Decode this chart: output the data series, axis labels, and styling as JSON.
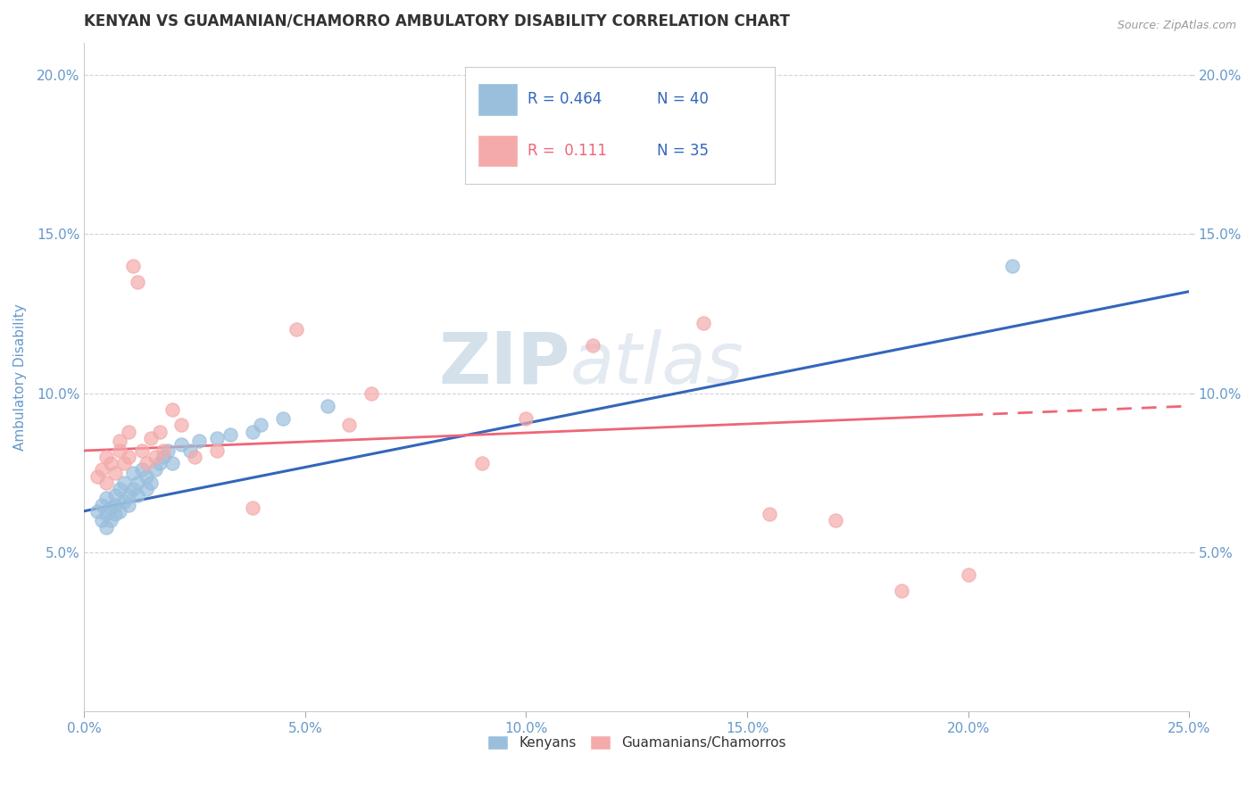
{
  "title": "KENYAN VS GUAMANIAN/CHAMORRO AMBULATORY DISABILITY CORRELATION CHART",
  "source": "Source: ZipAtlas.com",
  "xlabel": "",
  "ylabel": "Ambulatory Disability",
  "xlim": [
    0.0,
    0.25
  ],
  "ylim": [
    0.0,
    0.21
  ],
  "xticks": [
    0.0,
    0.05,
    0.1,
    0.15,
    0.2,
    0.25
  ],
  "yticks": [
    0.05,
    0.1,
    0.15,
    0.2
  ],
  "xticklabels": [
    "0.0%",
    "5.0%",
    "10.0%",
    "15.0%",
    "20.0%",
    "25.0%"
  ],
  "yticklabels": [
    "5.0%",
    "10.0%",
    "15.0%",
    "20.0%"
  ],
  "blue_color": "#9ABFDD",
  "pink_color": "#F4AAAA",
  "blue_line_color": "#3366BB",
  "pink_line_color": "#EE6677",
  "grid_color": "#CCCCDD",
  "title_color": "#333333",
  "axis_label_color": "#6699CC",
  "legend_r1": "R = 0.464",
  "legend_n1": "N = 40",
  "legend_r2": "R =  0.111",
  "legend_n2": "N = 35",
  "watermark_zip": "ZIP",
  "watermark_atlas": "atlas",
  "kenyan_x": [
    0.003,
    0.004,
    0.004,
    0.005,
    0.005,
    0.005,
    0.006,
    0.006,
    0.007,
    0.007,
    0.007,
    0.008,
    0.008,
    0.009,
    0.009,
    0.01,
    0.01,
    0.011,
    0.011,
    0.012,
    0.012,
    0.013,
    0.014,
    0.014,
    0.015,
    0.016,
    0.017,
    0.018,
    0.019,
    0.02,
    0.022,
    0.024,
    0.026,
    0.03,
    0.033,
    0.038,
    0.04,
    0.045,
    0.055,
    0.21
  ],
  "kenyan_y": [
    0.063,
    0.06,
    0.065,
    0.058,
    0.062,
    0.067,
    0.06,
    0.064,
    0.062,
    0.068,
    0.065,
    0.063,
    0.07,
    0.066,
    0.072,
    0.065,
    0.068,
    0.07,
    0.075,
    0.068,
    0.072,
    0.076,
    0.07,
    0.074,
    0.072,
    0.076,
    0.078,
    0.08,
    0.082,
    0.078,
    0.084,
    0.082,
    0.085,
    0.086,
    0.087,
    0.088,
    0.09,
    0.092,
    0.096,
    0.14
  ],
  "guam_x": [
    0.003,
    0.004,
    0.005,
    0.005,
    0.006,
    0.007,
    0.008,
    0.008,
    0.009,
    0.01,
    0.01,
    0.011,
    0.012,
    0.013,
    0.014,
    0.015,
    0.016,
    0.017,
    0.018,
    0.02,
    0.022,
    0.025,
    0.03,
    0.038,
    0.048,
    0.06,
    0.065,
    0.09,
    0.1,
    0.115,
    0.14,
    0.155,
    0.17,
    0.185,
    0.2
  ],
  "guam_y": [
    0.074,
    0.076,
    0.072,
    0.08,
    0.078,
    0.075,
    0.082,
    0.085,
    0.078,
    0.08,
    0.088,
    0.14,
    0.135,
    0.082,
    0.078,
    0.086,
    0.08,
    0.088,
    0.082,
    0.095,
    0.09,
    0.08,
    0.082,
    0.064,
    0.12,
    0.09,
    0.1,
    0.078,
    0.092,
    0.115,
    0.122,
    0.062,
    0.06,
    0.038,
    0.043
  ],
  "blue_line_x0": 0.0,
  "blue_line_y0": 0.063,
  "blue_line_x1": 0.25,
  "blue_line_y1": 0.132,
  "pink_line_x0": 0.0,
  "pink_line_y0": 0.082,
  "pink_line_x1": 0.25,
  "pink_line_y1": 0.096
}
